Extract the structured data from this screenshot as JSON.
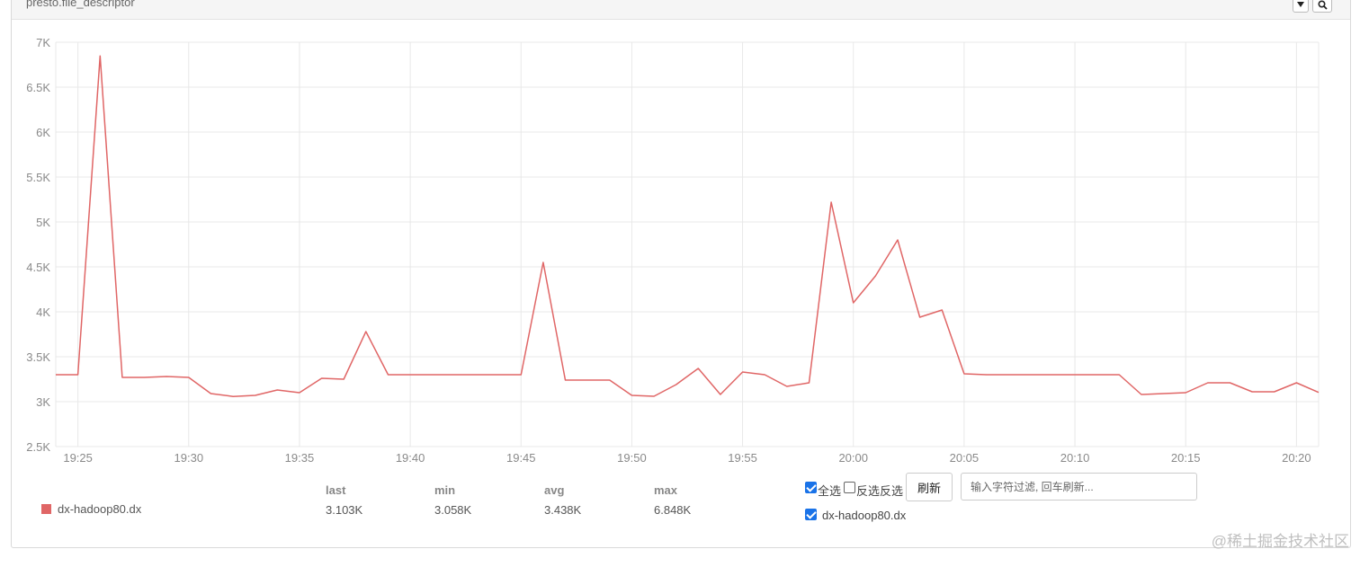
{
  "panel": {
    "title": "presto.file_descriptor"
  },
  "icons": {
    "dropdown": "caret-down-icon",
    "search": "magnifier-icon"
  },
  "colors": {
    "series": "#e06666",
    "grid": "#e8e8e8",
    "checkbox": "#1a73e8"
  },
  "chart_data": {
    "type": "line",
    "title": "",
    "xlabel": "",
    "ylabel": "",
    "ylim": [
      2500,
      7000
    ],
    "xlim": [
      "19:24",
      "20:21"
    ],
    "grid": true,
    "yticks": [
      "2.5K",
      "3K",
      "3.5K",
      "4K",
      "4.5K",
      "5K",
      "5.5K",
      "6K",
      "6.5K",
      "7K"
    ],
    "xticks": [
      "19:25",
      "19:30",
      "19:35",
      "19:40",
      "19:45",
      "19:50",
      "19:55",
      "20:00",
      "20:05",
      "20:10",
      "20:15",
      "20:20"
    ],
    "x": [
      "19:24",
      "19:25",
      "19:26",
      "19:27",
      "19:28",
      "19:29",
      "19:30",
      "19:31",
      "19:32",
      "19:33",
      "19:34",
      "19:35",
      "19:36",
      "19:37",
      "19:38",
      "19:39",
      "19:40",
      "19:41",
      "19:42",
      "19:43",
      "19:44",
      "19:45",
      "19:46",
      "19:47",
      "19:48",
      "19:49",
      "19:50",
      "19:51",
      "19:52",
      "19:53",
      "19:54",
      "19:55",
      "19:56",
      "19:57",
      "19:58",
      "19:59",
      "20:00",
      "20:01",
      "20:02",
      "20:03",
      "20:04",
      "20:05",
      "20:06",
      "20:07",
      "20:08",
      "20:09",
      "20:10",
      "20:11",
      "20:12",
      "20:13",
      "20:14",
      "20:15",
      "20:16",
      "20:17",
      "20:18",
      "20:19",
      "20:20",
      "20:21"
    ],
    "series": [
      {
        "name": "dx-hadoop80.dx",
        "color": "#e06666",
        "values": [
          3300,
          3300,
          6848,
          3270,
          3270,
          3280,
          3270,
          3090,
          3058,
          3070,
          3130,
          3100,
          3260,
          3250,
          3780,
          3300,
          3300,
          3300,
          3300,
          3300,
          3300,
          3300,
          4550,
          3240,
          3240,
          3240,
          3070,
          3060,
          3190,
          3370,
          3080,
          3330,
          3300,
          3170,
          3210,
          5220,
          4100,
          4400,
          4800,
          3940,
          4020,
          3310,
          3300,
          3300,
          3300,
          3300,
          3300,
          3300,
          3300,
          3080,
          3090,
          3100,
          3210,
          3210,
          3110,
          3110,
          3210,
          3103
        ]
      }
    ]
  },
  "legend": {
    "headers": [
      "last",
      "min",
      "avg",
      "max"
    ],
    "rows": [
      {
        "name": "dx-hadoop80.dx",
        "last": "3.103K",
        "min": "3.058K",
        "avg": "3.438K",
        "max": "6.848K"
      }
    ]
  },
  "controls": {
    "select_all": "全选",
    "select_all_checked": true,
    "invert": "反选反选",
    "invert_checked": false,
    "refresh_label": "刷新",
    "filter_placeholder": "输入字符过滤, 回车刷新...",
    "series_item": "dx-hadoop80.dx",
    "series_item_checked": true
  },
  "watermark": "@稀土掘金技术社区"
}
